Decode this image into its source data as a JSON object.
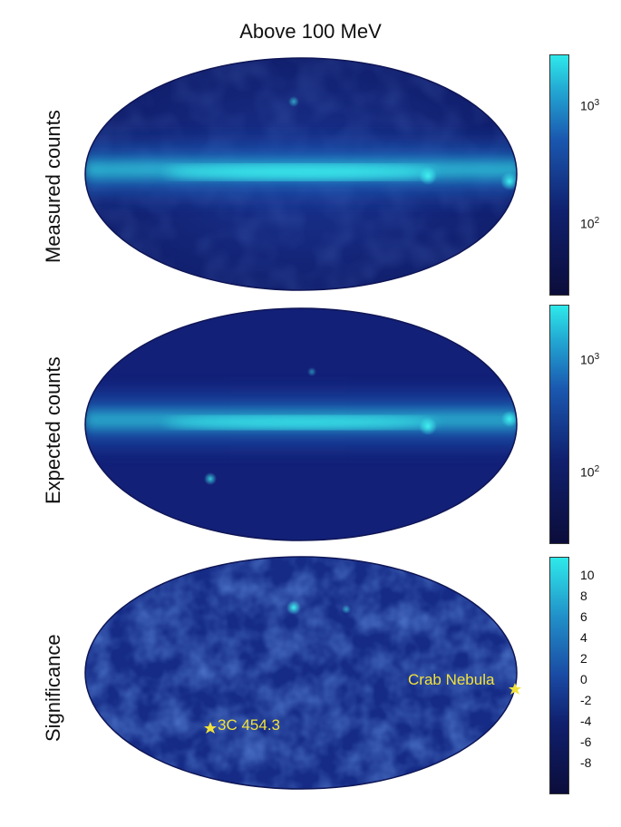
{
  "title": "Above 100 MeV",
  "panels": [
    {
      "label": "Measured counts",
      "colorbar_ticks": [
        {
          "base": "10",
          "exp": "3"
        },
        {
          "base": "10",
          "exp": "2"
        }
      ]
    },
    {
      "label": "Expected counts",
      "colorbar_ticks": [
        {
          "base": "10",
          "exp": "3"
        },
        {
          "base": "10",
          "exp": "2"
        }
      ]
    },
    {
      "label": "Significance",
      "colorbar_ticks": [
        "10",
        "8",
        "6",
        "4",
        "2",
        "0",
        "-2",
        "-4",
        "-6",
        "-8"
      ],
      "annotations": [
        "Crab Nebula",
        "3C 454.3"
      ]
    }
  ],
  "colors": {
    "map_dark": "#10145a",
    "map_mid": "#1a3a9a",
    "map_bright": "#2ee6e6",
    "annotation": "#f2e23a"
  }
}
